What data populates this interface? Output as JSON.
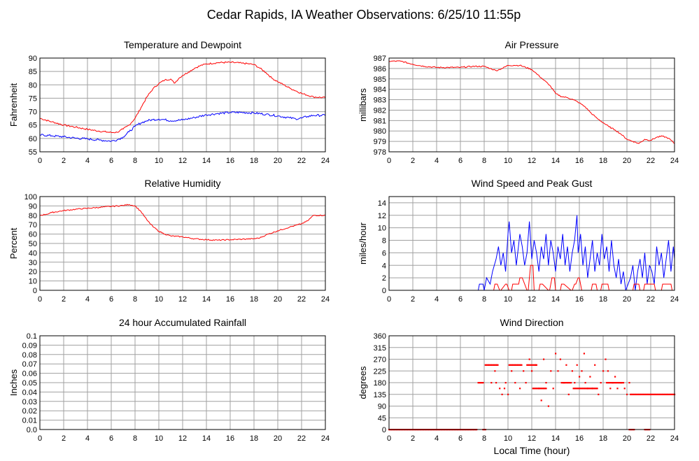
{
  "page_title": "Cedar Rapids, IA Weather Observations: 6/25/10 11:55p",
  "x_axis_label": "Local Time (hour)",
  "x_ticks": [
    "0",
    "2",
    "4",
    "6",
    "8",
    "10",
    "12",
    "14",
    "16",
    "18",
    "20",
    "22",
    "24"
  ],
  "colors": {
    "red": "#ff0000",
    "blue": "#0000ff",
    "grid": "#a0a0a0",
    "frame": "#000000"
  },
  "chart_data": [
    {
      "id": "temp",
      "type": "line",
      "title": "Temperature and Dewpoint",
      "ylabel": "Fahrenheit",
      "xlim": [
        0,
        24
      ],
      "ylim": [
        55,
        90
      ],
      "yticks": [
        55,
        60,
        65,
        70,
        75,
        80,
        85,
        90
      ],
      "series": [
        {
          "color": "#ff0000",
          "noise": 0.3,
          "x": [
            0,
            1,
            2,
            3,
            4,
            5,
            6,
            6.5,
            7,
            7.5,
            8,
            8.5,
            9,
            9.5,
            10,
            10.5,
            11,
            11.3,
            11.7,
            12,
            12.5,
            13,
            13.5,
            14,
            15,
            16,
            17,
            18,
            18.5,
            19,
            19.5,
            20,
            21,
            22,
            23,
            24
          ],
          "y": [
            67.5,
            66.2,
            65,
            64.2,
            63.4,
            62.7,
            62.2,
            62.3,
            63.5,
            65,
            67.5,
            71.5,
            75.5,
            78.5,
            80.5,
            81.8,
            82.2,
            80.6,
            82.5,
            83.5,
            84.8,
            86.2,
            87.2,
            87.8,
            88.3,
            88.4,
            88.1,
            87.6,
            86.2,
            84.6,
            82.5,
            81.2,
            78.8,
            76.8,
            75.5,
            75.2
          ]
        },
        {
          "color": "#0000ff",
          "noise": 0.4,
          "x": [
            0,
            1,
            2,
            3,
            4,
            5,
            6,
            6.5,
            7,
            7.5,
            8,
            8.5,
            9,
            9.5,
            10,
            10.5,
            11,
            12,
            13,
            14,
            15,
            16,
            17,
            18,
            19,
            20,
            21,
            21.5,
            22,
            22.5,
            23,
            24
          ],
          "y": [
            61.3,
            61,
            60.6,
            60.1,
            59.8,
            59.4,
            59,
            59.5,
            60.5,
            62.5,
            64.5,
            65.8,
            66.6,
            67,
            67.2,
            67,
            66.6,
            66.9,
            67.8,
            68.8,
            69.3,
            69.7,
            69.7,
            69.5,
            69,
            68.4,
            67.7,
            67.3,
            67.6,
            68.2,
            68.6,
            68.6
          ]
        }
      ]
    },
    {
      "id": "pres",
      "type": "line",
      "title": "Air Pressure",
      "ylabel": "millibars",
      "xlim": [
        0,
        24
      ],
      "ylim": [
        978,
        987
      ],
      "yticks": [
        978,
        979,
        980,
        981,
        982,
        983,
        984,
        985,
        986,
        987
      ],
      "series": [
        {
          "color": "#ff0000",
          "noise": 0.06,
          "x": [
            0,
            1,
            2,
            3,
            4,
            5,
            6,
            7,
            8,
            8.5,
            9,
            9.5,
            10,
            10.5,
            11,
            12,
            12.5,
            13,
            13.5,
            14,
            14.5,
            15,
            15.5,
            16,
            16.5,
            17,
            17.5,
            18,
            18.5,
            19,
            19.5,
            20,
            20.5,
            21,
            21.5,
            22,
            22.5,
            23,
            23.5,
            24
          ],
          "y": [
            986.7,
            986.7,
            986.4,
            986.2,
            986.1,
            986.1,
            986.1,
            986.2,
            986.2,
            986,
            985.8,
            986,
            986.3,
            986.3,
            986.3,
            985.9,
            985.4,
            984.9,
            984.4,
            983.6,
            983.3,
            983.2,
            983,
            982.7,
            982.3,
            981.7,
            981.2,
            980.8,
            980.4,
            980.1,
            979.7,
            979.2,
            979,
            978.8,
            979.2,
            979.1,
            979.4,
            979.5,
            979.3,
            978.8
          ]
        }
      ]
    },
    {
      "id": "rh",
      "type": "line",
      "title": "Relative Humidity",
      "ylabel": "Percent",
      "xlim": [
        0,
        24
      ],
      "ylim": [
        0,
        100
      ],
      "yticks": [
        0,
        10,
        20,
        30,
        40,
        50,
        60,
        70,
        80,
        90,
        100
      ],
      "series": [
        {
          "color": "#ff0000",
          "noise": 0.6,
          "x": [
            0,
            0.5,
            1,
            2,
            3,
            4,
            5,
            6,
            7,
            7.5,
            8,
            8.5,
            9,
            9.5,
            10,
            10.5,
            11,
            12,
            13,
            14,
            15,
            16,
            17,
            18,
            18.5,
            19,
            20,
            21,
            22,
            22.5,
            23,
            24
          ],
          "y": [
            80,
            81,
            83,
            85,
            86.5,
            87.5,
            88.5,
            89.5,
            90.5,
            91.5,
            90,
            84,
            75,
            68,
            63,
            60,
            58,
            57,
            55,
            54,
            53.5,
            54,
            54.5,
            55,
            56,
            59,
            63.5,
            67.5,
            71,
            74,
            80,
            80
          ]
        }
      ]
    },
    {
      "id": "wind",
      "type": "line",
      "title": "Wind Speed and Peak Gust",
      "ylabel": "miles/hour",
      "xlim": [
        0,
        24
      ],
      "ylim": [
        0,
        15
      ],
      "yticks": [
        0,
        2,
        4,
        6,
        8,
        10,
        12,
        14
      ],
      "series": [
        {
          "color": "#0000ff",
          "x": [
            0,
            7.5,
            7.6,
            7.9,
            8,
            8.2,
            8.5,
            8.7,
            9,
            9.2,
            9.4,
            9.6,
            9.8,
            10,
            10.1,
            10.3,
            10.5,
            10.7,
            11,
            11.2,
            11.4,
            11.6,
            11.8,
            12,
            12.2,
            12.4,
            12.6,
            12.8,
            13,
            13.2,
            13.4,
            13.6,
            13.8,
            14,
            14.2,
            14.4,
            14.6,
            14.8,
            15,
            15.2,
            15.4,
            15.6,
            15.8,
            15.9,
            16.1,
            16.3,
            16.5,
            16.7,
            16.9,
            17.1,
            17.3,
            17.5,
            17.7,
            17.9,
            18.1,
            18.3,
            18.5,
            18.7,
            18.9,
            19.1,
            19.3,
            19.5,
            19.7,
            19.9,
            20.1,
            20.3,
            20.5,
            20.7,
            20.9,
            21.1,
            21.3,
            21.5,
            21.7,
            21.9,
            22.1,
            22.3,
            22.5,
            22.7,
            22.9,
            23.1,
            23.3,
            23.5,
            23.7,
            23.9,
            24
          ],
          "y": [
            0,
            0,
            1,
            1,
            0,
            2,
            1,
            3,
            5,
            7,
            4,
            6,
            3,
            9,
            11,
            6,
            8,
            4,
            9,
            7,
            4,
            6,
            11,
            5,
            8,
            6,
            3,
            7,
            5,
            9,
            4,
            8,
            6,
            3,
            7,
            5,
            9,
            4,
            7,
            3,
            6,
            8,
            12,
            6,
            9,
            4,
            7,
            2,
            5,
            8,
            3,
            6,
            4,
            9,
            5,
            7,
            3,
            8,
            4,
            2,
            5,
            1,
            3,
            0,
            1,
            2,
            4,
            0,
            3,
            5,
            2,
            6,
            1,
            4,
            3,
            1,
            7,
            4,
            6,
            2,
            5,
            8,
            3,
            7,
            5
          ]
        },
        {
          "color": "#ff0000",
          "x": [
            0,
            8.8,
            8.9,
            9.1,
            9.3,
            9.4,
            9.8,
            9.9,
            10.1,
            10.3,
            10.4,
            10.9,
            11,
            11.2,
            11.6,
            11.7,
            11.9,
            12.1,
            12.2,
            12.6,
            12.7,
            12.9,
            13.4,
            13.5,
            13.7,
            13.9,
            14,
            14.4,
            14.5,
            14.7,
            15.3,
            15.4,
            15.6,
            15.7,
            15.9,
            16,
            16.2,
            16.3,
            17,
            17.1,
            17.4,
            17.5,
            17.8,
            17.9,
            18.4,
            18.5,
            20.5,
            20.6,
            21,
            21.1,
            21.4,
            21.5,
            22.3,
            22.4,
            22.9,
            23,
            23.7,
            23.8,
            24
          ],
          "y": [
            0,
            0,
            1,
            1,
            0,
            0,
            1,
            1,
            0,
            0,
            1,
            1,
            2,
            2,
            0,
            0,
            4,
            4,
            0,
            0,
            1,
            1,
            0,
            0,
            2,
            2,
            0,
            0,
            1,
            1,
            0,
            0,
            1,
            1,
            2,
            2,
            0,
            0,
            0,
            1,
            1,
            0,
            0,
            1,
            1,
            0,
            0,
            1,
            1,
            0,
            0,
            1,
            1,
            0,
            0,
            1,
            1,
            0,
            0
          ]
        }
      ]
    },
    {
      "id": "rain",
      "type": "line",
      "title": "24 hour Accumulated Rainfall",
      "ylabel": "Inches",
      "xlim": [
        0,
        24
      ],
      "ylim": [
        0,
        0.1
      ],
      "yticks": [
        0.0,
        0.01,
        0.02,
        0.03,
        0.04,
        0.05,
        0.06,
        0.07,
        0.08,
        0.09,
        0.1
      ],
      "ytick_labels": [
        "0.0",
        "0.01",
        "0.02",
        "0.03",
        "0.04",
        "0.05",
        "0.06",
        "0.07",
        "0.08",
        "0.09",
        "0.1"
      ],
      "series": [
        {
          "color": "#ff0000",
          "x": [
            0,
            24
          ],
          "y": [
            0,
            0
          ]
        }
      ]
    },
    {
      "id": "dir",
      "type": "scatter",
      "title": "Wind Direction",
      "ylabel": "degrees",
      "xlim": [
        0,
        24
      ],
      "ylim": [
        0,
        360
      ],
      "yticks": [
        0,
        45,
        90,
        135,
        180,
        225,
        270,
        315,
        360
      ],
      "series": [
        {
          "color": "#ff0000",
          "segments": [
            {
              "x0": 0,
              "x1": 7.4,
              "y": 0,
              "step": 0.08
            },
            {
              "x0": 7.5,
              "x1": 7.9,
              "y": 180,
              "step": 0.1
            },
            {
              "x0": 7.9,
              "x1": 8.1,
              "y": 0,
              "step": 0.1
            },
            {
              "x0": 8.1,
              "x1": 9.2,
              "y": 248,
              "step": 0.08
            },
            {
              "x0": 10.1,
              "x1": 11.2,
              "y": 248,
              "step": 0.08
            },
            {
              "x0": 11.6,
              "x1": 12.4,
              "y": 248,
              "step": 0.1
            },
            {
              "x0": 12.1,
              "x1": 13.2,
              "y": 158,
              "step": 0.1
            },
            {
              "x0": 14.5,
              "x1": 15.3,
              "y": 180,
              "step": 0.1
            },
            {
              "x0": 15.5,
              "x1": 16.7,
              "y": 158,
              "step": 0.1
            },
            {
              "x0": 16.8,
              "x1": 17.5,
              "y": 158,
              "step": 0.1
            },
            {
              "x0": 18.3,
              "x1": 19.7,
              "y": 180,
              "step": 0.1
            },
            {
              "x0": 20.3,
              "x1": 24,
              "y": 135,
              "step": 0.1
            },
            {
              "x0": 20.2,
              "x1": 20.6,
              "y": 0,
              "step": 0.1
            },
            {
              "x0": 21.5,
              "x1": 21.9,
              "y": 0,
              "step": 0.1
            }
          ],
          "x": [
            8.6,
            8.9,
            9.0,
            9.3,
            9.5,
            9.7,
            9.8,
            10.0,
            10.3,
            10.6,
            11.0,
            11.3,
            11.5,
            11.8,
            12.0,
            12.3,
            12.6,
            12.8,
            13.0,
            13.2,
            13.4,
            13.6,
            13.8,
            14.0,
            14.2,
            14.4,
            14.7,
            14.9,
            15.1,
            15.4,
            15.6,
            15.8,
            16.0,
            16.2,
            16.4,
            16.5,
            16.7,
            16.9,
            17.1,
            17.3,
            17.6,
            17.8,
            18.0,
            18.2,
            18.4,
            18.6,
            18.8,
            19.0,
            19.2,
            19.5,
            19.8,
            20.0,
            20.2
          ],
          "y": [
            180,
            225,
            180,
            158,
            135,
            158,
            180,
            135,
            225,
            180,
            158,
            225,
            180,
            270,
            225,
            248,
            158,
            112,
            270,
            180,
            90,
            225,
            158,
            292,
            225,
            270,
            180,
            248,
            135,
            225,
            180,
            248,
            203,
            225,
            292,
            180,
            158,
            203,
            158,
            248,
            135,
            180,
            225,
            270,
            225,
            158,
            180,
            203,
            158,
            180,
            158,
            135,
            180
          ]
        }
      ]
    }
  ]
}
